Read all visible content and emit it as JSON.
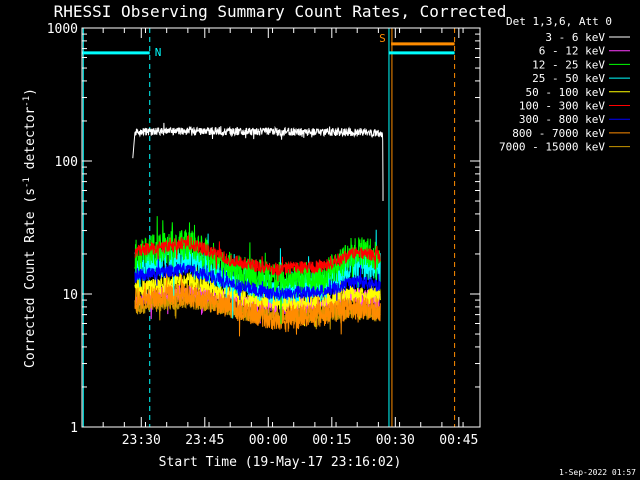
{
  "chart_data": {
    "type": "line",
    "title": "RHESSI Observing Summary Count Rates, Corrected",
    "ylabel_pre": "Corrected Count Rate (s",
    "ylabel_sup1": "-1",
    "ylabel_mid": " detector",
    "ylabel_sup2": "-1",
    "ylabel_post": ")",
    "xlabel": "Start Time (19-May-17 23:16:02)",
    "y_scale": "log",
    "ylim": [
      1,
      1000
    ],
    "xlim_minutes": [
      0,
      94
    ],
    "x_ticks": [
      {
        "min": 14,
        "label": "23:30"
      },
      {
        "min": 29,
        "label": "23:45"
      },
      {
        "min": 44,
        "label": "00:00"
      },
      {
        "min": 59,
        "label": "00:15"
      },
      {
        "min": 74,
        "label": "00:30"
      },
      {
        "min": 89,
        "label": "00:45"
      }
    ],
    "y_ticks": [
      {
        "value": 1,
        "label": "1"
      },
      {
        "value": 10,
        "label": "10"
      },
      {
        "value": 100,
        "label": "100"
      },
      {
        "value": 1000,
        "label": "1000"
      }
    ],
    "legend_title": "Det 1,3,6, Att 0",
    "grid": false,
    "legend_position": "outside-right",
    "series": [
      {
        "name": "3 - 6 keV",
        "color": "#ffffff",
        "x_min": [
          12.0,
          12.5,
          25,
          45,
          60,
          70,
          71.0,
          71.1
        ],
        "y": [
          105,
          165,
          168,
          166,
          165,
          162,
          160,
          50
        ],
        "noise": 0.03
      },
      {
        "name": "6 - 12 keV",
        "color": "#ff3cff",
        "x_min": [
          12.5,
          25,
          40,
          50,
          65,
          70.5
        ],
        "y": [
          9,
          10.5,
          8.5,
          8.2,
          9.5,
          9
        ],
        "noise": 0.07
      },
      {
        "name": "12 - 25 keV",
        "color": "#00ff00",
        "x_min": [
          12.5,
          25,
          35,
          45,
          57,
          65,
          70.5
        ],
        "y": [
          20,
          24,
          16,
          13,
          13.5,
          21,
          20
        ],
        "noise": 0.12
      },
      {
        "name": "25 - 50 keV",
        "color": "#00ffff",
        "x_min": [
          12.5,
          25,
          35,
          45,
          57,
          65,
          70.5
        ],
        "y": [
          16,
          19,
          13,
          11,
          11.5,
          17,
          16
        ],
        "noise": 0.12
      },
      {
        "name": "50 - 100 keV",
        "color": "#ffff00",
        "x_min": [
          12.5,
          25,
          40,
          50,
          65,
          70.5
        ],
        "y": [
          11,
          12.5,
          9,
          8.5,
          10,
          9.5
        ],
        "noise": 0.07
      },
      {
        "name": "100 - 300 keV",
        "color": "#ff0000",
        "x_min": [
          12.5,
          25,
          35,
          45,
          57,
          65,
          70.5
        ],
        "y": [
          21,
          24.5,
          18,
          15.5,
          16,
          21,
          19
        ],
        "noise": 0.05
      },
      {
        "name": "300 - 800 keV",
        "color": "#0000ff",
        "x_min": [
          12.5,
          25,
          35,
          45,
          57,
          65,
          70.5
        ],
        "y": [
          13.5,
          15.5,
          12,
          10,
          10.5,
          12.5,
          11.5
        ],
        "noise": 0.05
      },
      {
        "name": "800 - 7000 keV",
        "color": "#ff8c00",
        "x_min": [
          12.5,
          25,
          35,
          45,
          57,
          65,
          70.5
        ],
        "y": [
          9,
          10,
          8,
          6.5,
          7,
          8,
          7.5
        ],
        "noise": 0.09
      },
      {
        "name": "7000 - 15000 keV",
        "color": "#c89600",
        "x_min": [
          12.5,
          25,
          40,
          50,
          65,
          70.5
        ],
        "y": [
          8,
          9,
          7,
          6.8,
          7.5,
          7
        ],
        "noise": 0.06
      }
    ],
    "annotations": [
      {
        "label": "N",
        "color": "#00ffff",
        "x_from": 0,
        "x_to": 16,
        "y": 650,
        "marker_x": 16
      },
      {
        "label": "S",
        "color": "#ff8c00",
        "x_from": 73,
        "x_to": 88,
        "y": 760,
        "marker_x": 73
      },
      {
        "label": "",
        "color": "#00ffff",
        "x_from": 72.5,
        "x_to": 88,
        "y": 650,
        "marker_x": null
      }
    ],
    "vertical_lines": [
      {
        "x_min": 0.3,
        "color": "#00ffff",
        "dashed": false
      },
      {
        "x_min": 16,
        "color": "#00ffff",
        "dashed": true
      },
      {
        "x_min": 72.5,
        "color": "#00ffff",
        "dashed": false
      },
      {
        "x_min": 73.2,
        "color": "#ff8c00",
        "dashed": false
      },
      {
        "x_min": 88,
        "color": "#ff8c00",
        "dashed": true
      }
    ]
  },
  "footer": {
    "timestamp": "1-Sep-2022 01:57"
  }
}
